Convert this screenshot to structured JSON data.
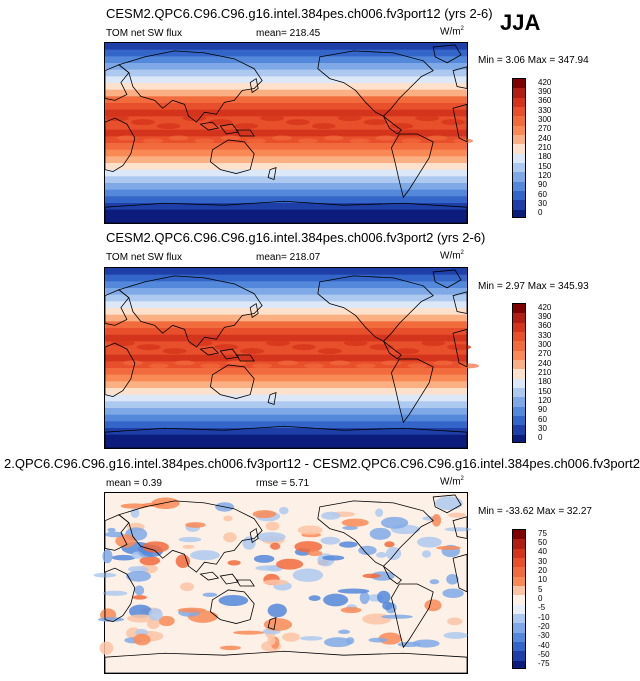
{
  "season": "JJA",
  "panels": [
    {
      "id": "p1",
      "title": "CESM2.QPC6.C96.C96.g16.intel.384pes.ch006.fv3port12 (yrs 2-6)",
      "left_label": "TOM net SW flux",
      "center_label": "mean= 218.45",
      "units_base": "W/m",
      "units_sup": "2",
      "minmax": "Min =  3.06 Max = 347.94",
      "colorbar_labels": [
        "420",
        "390",
        "360",
        "330",
        "300",
        "270",
        "240",
        "210",
        "180",
        "150",
        "120",
        "90",
        "60",
        "30",
        "0"
      ],
      "type": "field"
    },
    {
      "id": "p2",
      "title": "CESM2.QPC6.C96.C96.g16.intel.384pes.ch006.fv3port2 (yrs 2-6)",
      "left_label": "TOM net SW flux",
      "center_label": "mean= 218.07",
      "units_base": "W/m",
      "units_sup": "2",
      "minmax": "Min =  2.97 Max = 345.93",
      "colorbar_labels": [
        "420",
        "390",
        "360",
        "330",
        "300",
        "270",
        "240",
        "210",
        "180",
        "150",
        "120",
        "90",
        "60",
        "30",
        "0"
      ],
      "type": "field"
    },
    {
      "id": "p3",
      "title": "2.QPC6.C96.C96.g16.intel.384pes.ch006.fv3port12 - CESM2.QPC6.C96.C96.g16.intel.384pes.ch006.fv3port2",
      "left_label": "mean =   0.39",
      "center_label": "rmse =   5.71",
      "units_base": "W/m",
      "units_sup": "2",
      "minmax": "Min = -33.62 Max =  32.27",
      "colorbar_labels": [
        "75",
        "50",
        "40",
        "30",
        "20",
        "10",
        "5",
        "0",
        "-5",
        "-10",
        "-20",
        "-30",
        "-40",
        "-50",
        "-75"
      ],
      "type": "diff"
    }
  ],
  "colors": {
    "field_scale": [
      "#7f0000",
      "#b21d13",
      "#d4341c",
      "#e84f2b",
      "#f26b3d",
      "#f98a56",
      "#fbb083",
      "#fde1cc",
      "#dce7f7",
      "#aec9ef",
      "#7fa9e6",
      "#5388da",
      "#3466c9",
      "#1d3fa7",
      "#0c1c7c"
    ],
    "diff_scale": [
      "#7f0000",
      "#b21d13",
      "#d4341c",
      "#e84f2b",
      "#f26b3d",
      "#f98a56",
      "#fbc4a4",
      "#fdf0e6",
      "#e8eefa",
      "#aec9ef",
      "#7fa9e6",
      "#5388da",
      "#3466c9",
      "#1d3fa7",
      "#0c1c7c"
    ]
  }
}
